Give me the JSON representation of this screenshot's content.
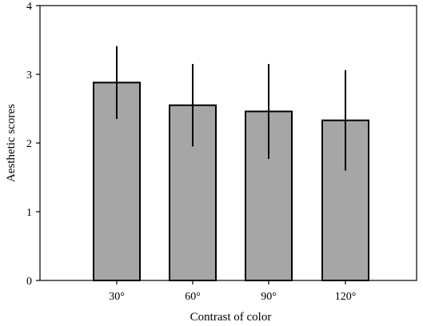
{
  "chart_data": {
    "type": "bar",
    "categories": [
      "30°",
      "60°",
      "90°",
      "120°"
    ],
    "values": [
      2.88,
      2.55,
      2.46,
      2.33
    ],
    "error": [
      0.53,
      0.6,
      0.69,
      0.73
    ],
    "xlabel": "Contrast of color",
    "ylabel": "Aesthetic scores",
    "ylim": [
      0,
      4
    ],
    "yticks": [
      0,
      1,
      2,
      3,
      4
    ],
    "bar_color": "#a6a6a6",
    "grid": false
  }
}
